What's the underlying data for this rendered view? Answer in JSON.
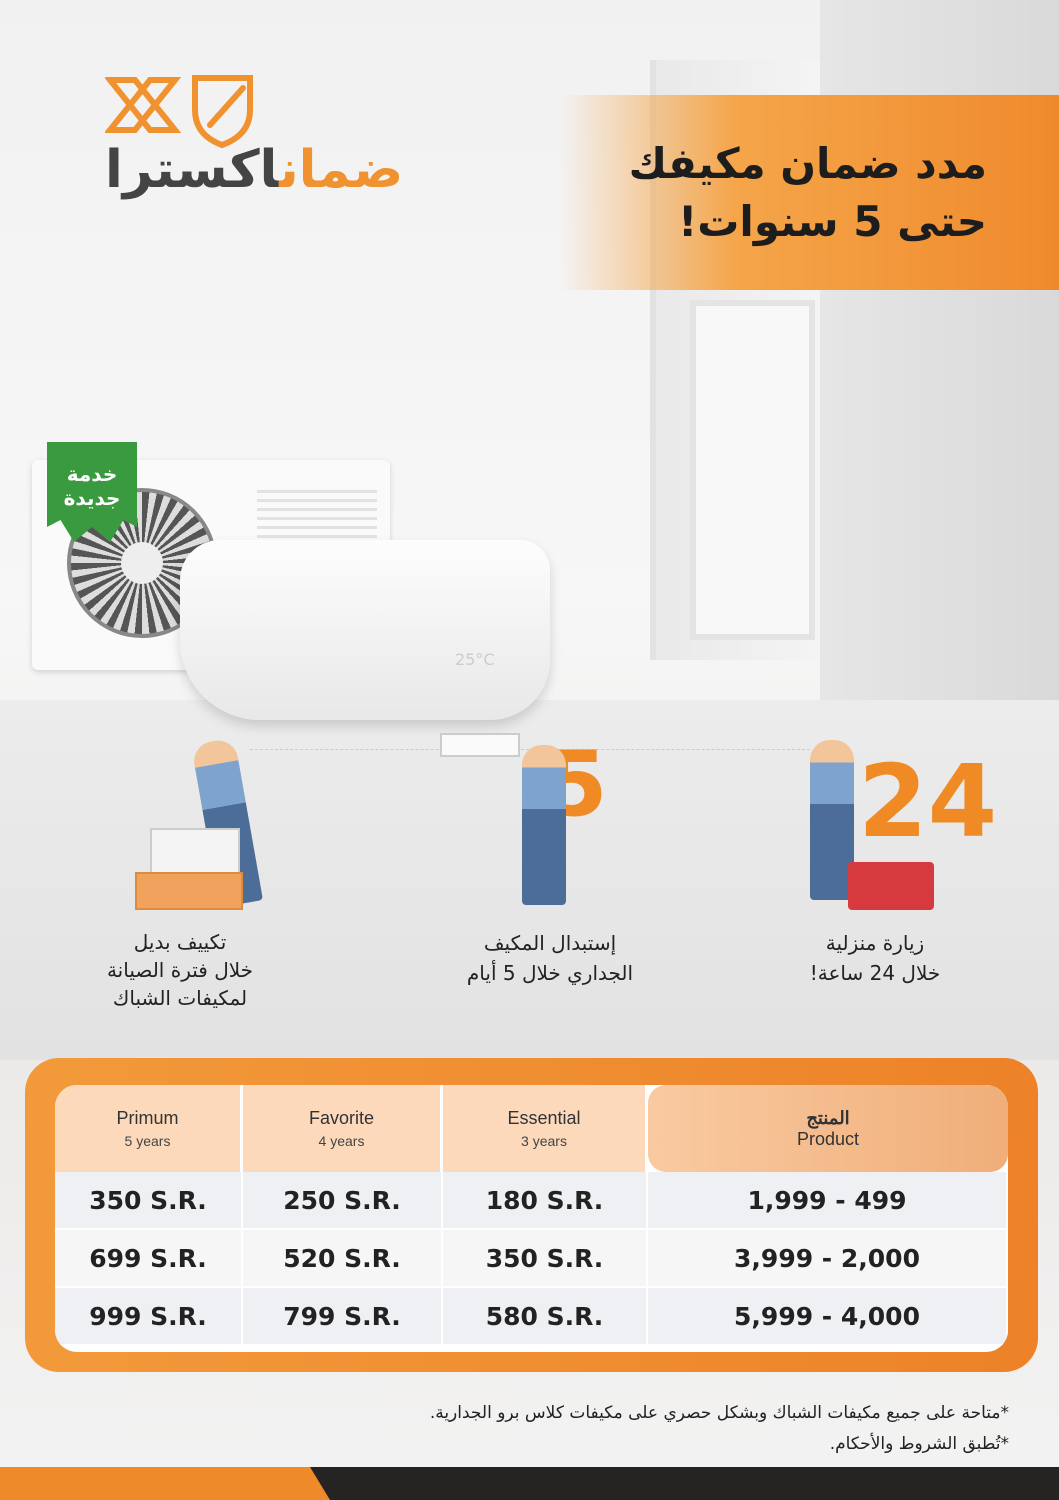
{
  "brand": {
    "logo_text_orange": "ضمان",
    "logo_text_gray": "اكسترا",
    "accent": "#ef8a2c"
  },
  "headline": {
    "line1": "مدد ضمان مكيفك",
    "line2": "حتى 5 سنوات!"
  },
  "badge": {
    "line1": "خدمة",
    "line2": "جديدة",
    "color": "#3a9a3f"
  },
  "ac_display": "25°C",
  "features": [
    {
      "number": "24",
      "lines": [
        "زيارة منزلية",
        "خلال 24 ساعة!"
      ]
    },
    {
      "number": "5",
      "lines": [
        "إستبدال المكيف",
        "الجداري خلال 5 أيام"
      ]
    },
    {
      "lines": [
        "تكييف بديل",
        "خلال فترة الصيانة",
        "لمكيفات الشباك"
      ]
    }
  ],
  "table": {
    "headers": [
      {
        "name": "Primum",
        "sub": "5 years"
      },
      {
        "name": "Favorite",
        "sub": "4 years"
      },
      {
        "name": "Essential",
        "sub": "3 years"
      },
      {
        "name": "المنتج",
        "sub": "Product"
      }
    ],
    "rows": [
      [
        "350 S.R.",
        "250 S.R.",
        "180 S.R.",
        "1,999 - 499"
      ],
      [
        "699 S.R.",
        "520 S.R.",
        "350 S.R.",
        "3,999 - 2,000"
      ],
      [
        "999 S.R.",
        "799 S.R.",
        "580 S.R.",
        "5,999 - 4,000"
      ]
    ]
  },
  "notes": [
    "*متاحة على جميع مكيفات الشباك وبشكل حصري على مكيفات كلاس برو الجدارية.",
    "*تُطبق الشروط والأحكام."
  ]
}
